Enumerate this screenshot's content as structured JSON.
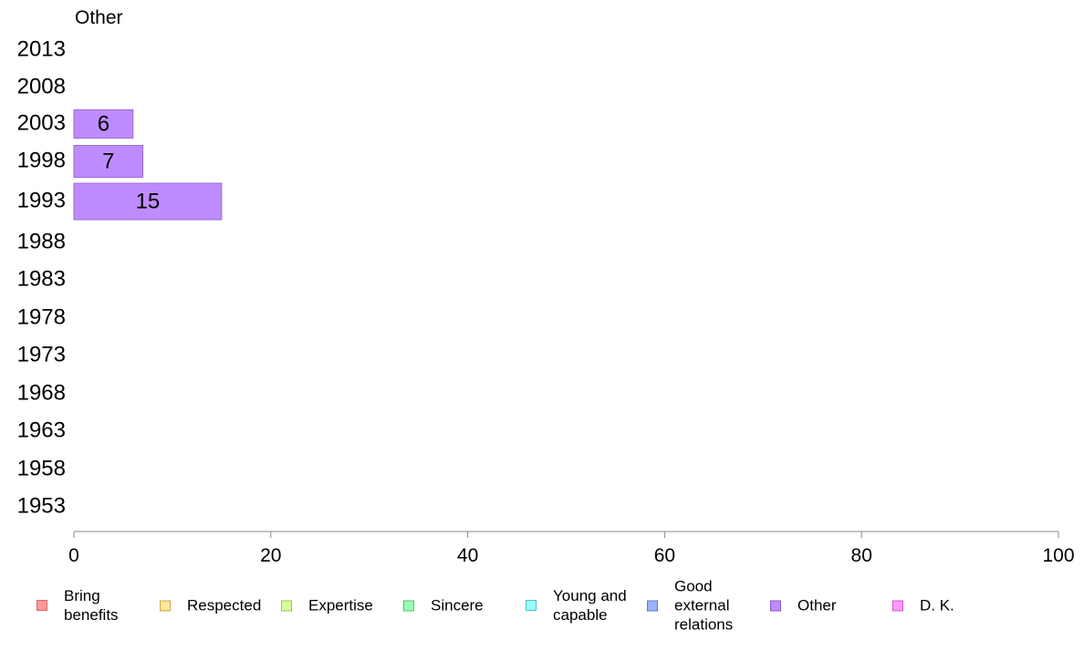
{
  "chart_data": {
    "type": "bar",
    "orientation": "horizontal",
    "title": "Other",
    "categories": [
      "2013",
      "2008",
      "2003",
      "1998",
      "1993",
      "1988",
      "1983",
      "1978",
      "1973",
      "1968",
      "1963",
      "1958",
      "1953"
    ],
    "series": [
      {
        "name": "Other",
        "color": "#bf8cff",
        "values": [
          null,
          null,
          6,
          7,
          15,
          null,
          null,
          null,
          null,
          null,
          null,
          null,
          null
        ]
      }
    ],
    "data_labels": [
      null,
      null,
      "6",
      "7",
      "15",
      null,
      null,
      null,
      null,
      null,
      null,
      null,
      null
    ],
    "xlim": [
      0,
      100
    ],
    "xticks": [
      "0",
      "20",
      "40",
      "60",
      "80",
      "100"
    ],
    "grid": false,
    "legend_position": "bottom",
    "legend": [
      {
        "label": "Bring\nbenefits",
        "color": "#ff9999",
        "border": "#d46a6a"
      },
      {
        "label": "Respected",
        "color": "#ffe699",
        "border": "#c9a84a"
      },
      {
        "label": "Expertise",
        "color": "#d9ff99",
        "border": "#9fc24e"
      },
      {
        "label": "Sincere",
        "color": "#99ffb3",
        "border": "#4fbf6e"
      },
      {
        "label": "Young and\ncapable",
        "color": "#99ffff",
        "border": "#4cc2c2"
      },
      {
        "label": "Good\nexternal\nrelations",
        "color": "#99b3ff",
        "border": "#5a7ad1"
      },
      {
        "label": "Other",
        "color": "#bf8cff",
        "border": "#8a5ccc"
      },
      {
        "label": "D. K.",
        "color": "#ff99ff",
        "border": "#cc5ccc"
      }
    ]
  }
}
